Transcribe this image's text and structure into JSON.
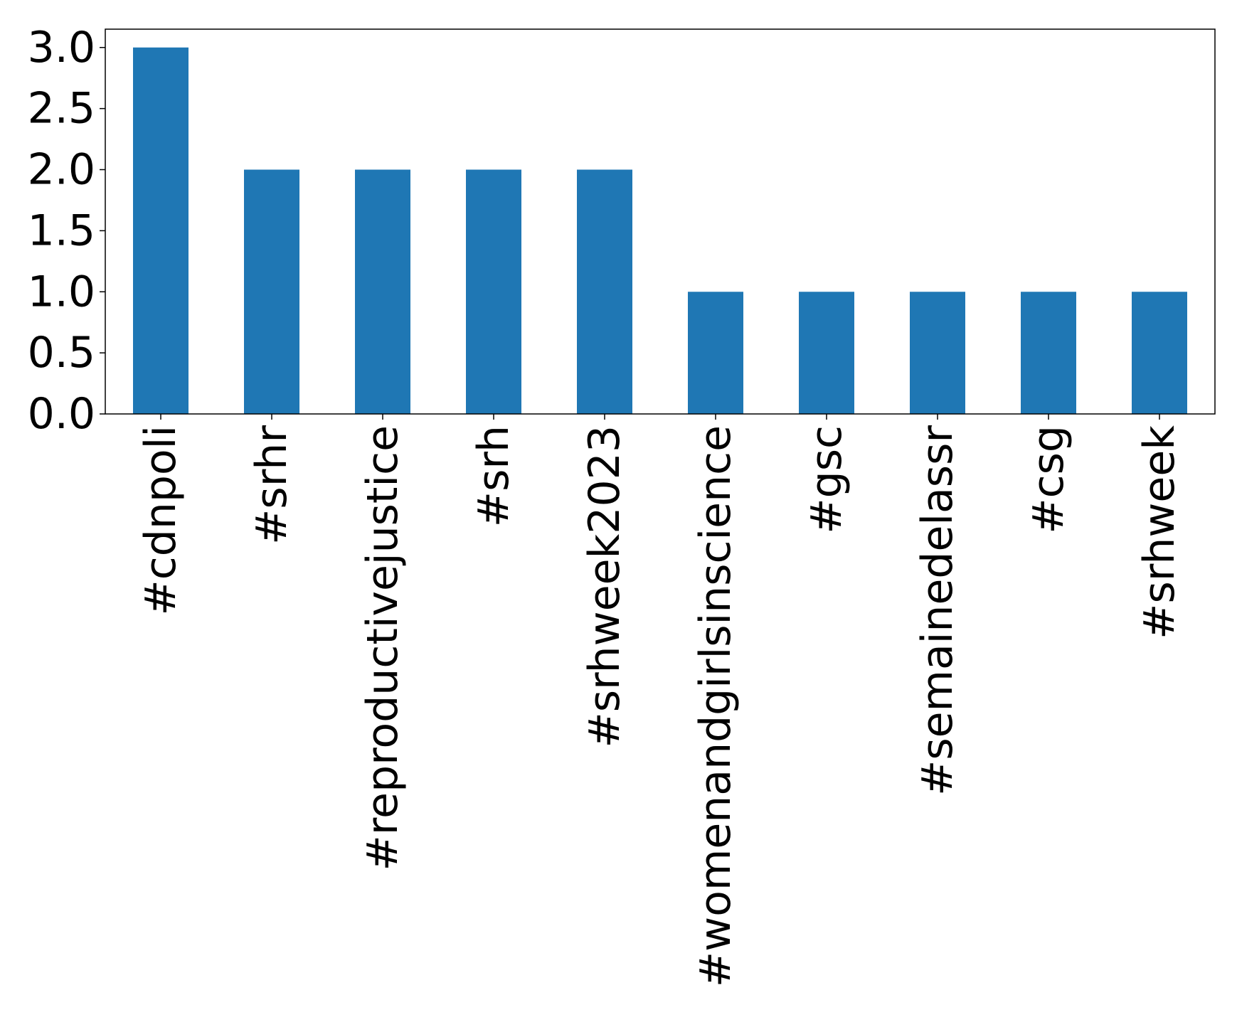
{
  "chart_data": {
    "type": "bar",
    "categories": [
      "#cdnpoli",
      "#srhr",
      "#reproductivejustice",
      "#srh",
      "#srhweek2023",
      "#womenandgirlsinscience",
      "#gsc",
      "#semainedelassr",
      "#csg",
      "#srhweek"
    ],
    "values": [
      3,
      2,
      2,
      2,
      2,
      1,
      1,
      1,
      1,
      1
    ],
    "color": "#1f77b4",
    "ylim": [
      0,
      3.15
    ],
    "yticks": [
      {
        "value": 0,
        "label": "0.0"
      },
      {
        "value": 0.5,
        "label": "0.5"
      },
      {
        "value": 1,
        "label": "1.0"
      },
      {
        "value": 1.5,
        "label": "1.5"
      },
      {
        "value": 2,
        "label": "2.0"
      },
      {
        "value": 2.5,
        "label": "2.5"
      },
      {
        "value": 3,
        "label": "3.0"
      }
    ],
    "grid": false
  }
}
